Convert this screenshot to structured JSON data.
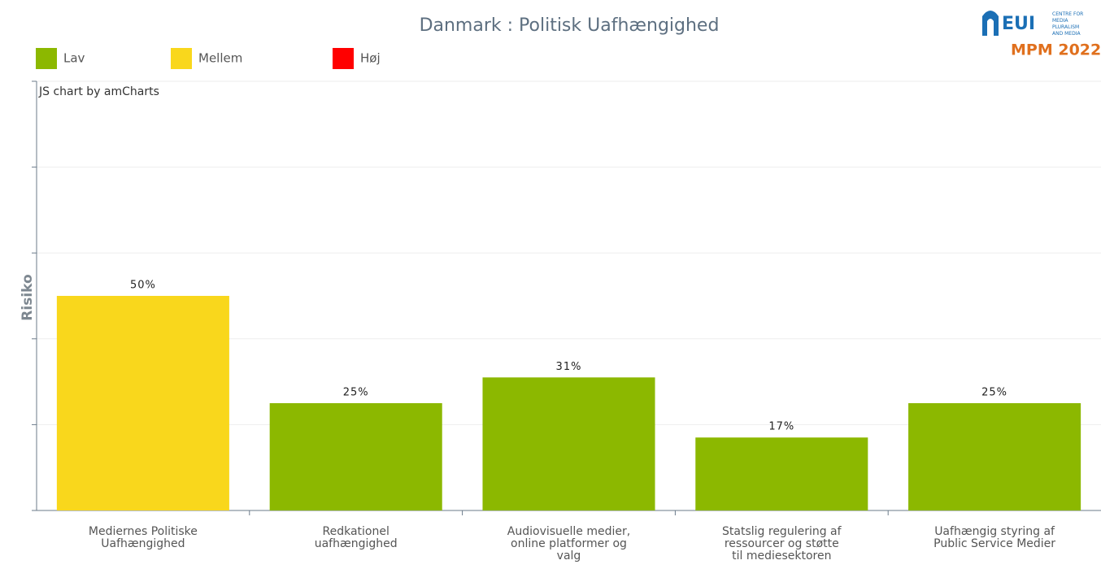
{
  "chart_data": {
    "type": "bar",
    "title": "Danmark : Politisk Uafhængighed",
    "credit": "JS chart by amCharts",
    "logo": {
      "mark": "EUI",
      "subtitle": "CENTRE FOR MEDIA PLURALISM AND MEDIA FREEDOM",
      "name": "MPM 2022"
    },
    "ylabel": "Risiko",
    "legend": [
      {
        "name": "Lav",
        "color": "#8cb800"
      },
      {
        "name": "Mellem",
        "color": "#f9d71c"
      },
      {
        "name": "Høj",
        "color": "#ff0000"
      }
    ],
    "categories": [
      "Mediernes Politiske Uafhængighed",
      "Redkationel uafhængighed",
      "Audiovisuelle medier, online platformer og valg",
      "Statslig regulering af ressourcer og støtte til mediesektoren",
      "Uafhængig styring af Public Service Medier"
    ],
    "values": [
      50,
      25,
      31,
      17,
      25
    ],
    "value_labels": [
      "50%",
      "25%",
      "31%",
      "17%",
      "25%"
    ],
    "colors": [
      "#f9d71c",
      "#8cb800",
      "#8cb800",
      "#8cb800",
      "#8cb800"
    ],
    "ylim": [
      0,
      100
    ],
    "yticks": [
      0,
      20,
      40,
      60,
      80,
      100
    ],
    "grid": true
  }
}
